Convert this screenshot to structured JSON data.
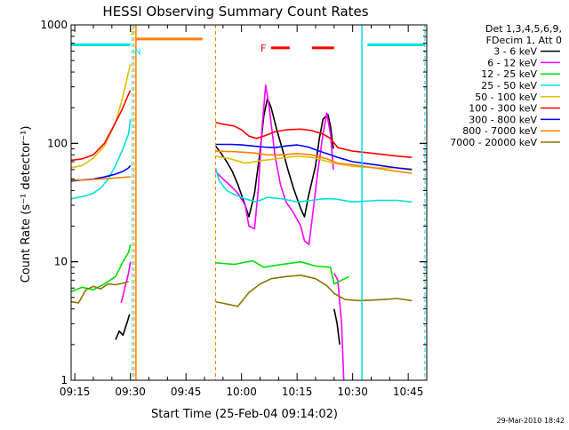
{
  "chart_data": {
    "type": "line",
    "title": "HESSI Observing Summary Count Rates",
    "xlabel": "Start Time (25-Feb-04 09:14:02)",
    "ylabel": "Count Rate (s⁻¹ detector⁻¹)",
    "x_unit": "minutes from 09:14:02",
    "xlim": [
      0,
      96
    ],
    "ylim": [
      1,
      1000
    ],
    "yscale": "log",
    "x_ticks": [
      {
        "x": 1,
        "label": "09:15"
      },
      {
        "x": 16,
        "label": "09:30"
      },
      {
        "x": 31,
        "label": "09:45"
      },
      {
        "x": 46,
        "label": "10:00"
      },
      {
        "x": 61,
        "label": "10:15"
      },
      {
        "x": 76,
        "label": "10:30"
      },
      {
        "x": 91,
        "label": "10:45"
      }
    ],
    "y_ticks": [
      {
        "y": 1,
        "label": "1"
      },
      {
        "y": 10,
        "label": "10"
      },
      {
        "y": 100,
        "label": "100"
      },
      {
        "y": 1000,
        "label": "1000"
      }
    ],
    "legend_header": [
      "Det 1,3,4,5,6,9,",
      "FDecim 1, Att 0"
    ],
    "legend_position": "right",
    "series": [
      {
        "name": "3 - 6 keV",
        "color": "#000000",
        "segments": [
          [
            [
              12,
              2.2
            ],
            [
              13,
              2.6
            ],
            [
              14,
              2.4
            ],
            [
              15,
              3.0
            ],
            [
              15.8,
              3.6
            ]
          ],
          [
            [
              39,
              95
            ],
            [
              40.5,
              82
            ],
            [
              42,
              70
            ],
            [
              43.5,
              58
            ],
            [
              45,
              45
            ],
            [
              47,
              30
            ],
            [
              48,
              24
            ],
            [
              49.5,
              38
            ],
            [
              51,
              85
            ],
            [
              52,
              170
            ],
            [
              53,
              240
            ],
            [
              54,
              200
            ],
            [
              55.5,
              130
            ],
            [
              57,
              90
            ],
            [
              58.5,
              60
            ],
            [
              60,
              42
            ],
            [
              62,
              28
            ],
            [
              63,
              24
            ],
            [
              64,
              35
            ],
            [
              66,
              65
            ],
            [
              67,
              110
            ],
            [
              68,
              160
            ],
            [
              69.3,
              175
            ],
            [
              70,
              140
            ],
            [
              70.8,
              90
            ]
          ],
          [
            [
              71,
              4
            ],
            [
              71.8,
              3
            ],
            [
              72.5,
              2
            ]
          ]
        ]
      },
      {
        "name": "6 - 12 keV",
        "color": "#ff00ff",
        "segments": [
          [
            [
              13.5,
              4.5
            ],
            [
              14.5,
              6
            ],
            [
              15.5,
              8
            ],
            [
              16,
              10
            ]
          ],
          [
            [
              39,
              58
            ],
            [
              41,
              50
            ],
            [
              43,
              44
            ],
            [
              45,
              38
            ],
            [
              47,
              30
            ],
            [
              48,
              20
            ],
            [
              49.5,
              19
            ],
            [
              50.5,
              40
            ],
            [
              51.5,
              130
            ],
            [
              52.5,
              310
            ],
            [
              53.5,
              200
            ],
            [
              55,
              80
            ],
            [
              56.5,
              45
            ],
            [
              58,
              32
            ],
            [
              60,
              26
            ],
            [
              62,
              20
            ],
            [
              63,
              15
            ],
            [
              64.2,
              14
            ],
            [
              65,
              22
            ],
            [
              66.5,
              55
            ],
            [
              68,
              120
            ],
            [
              69,
              180
            ],
            [
              70,
              120
            ],
            [
              70.8,
              60
            ]
          ],
          [
            [
              71,
              8
            ],
            [
              72,
              7
            ],
            [
              73,
              3
            ],
            [
              73.6,
              1
            ]
          ]
        ]
      },
      {
        "name": "12 - 25 keV",
        "color": "#00e000",
        "segments": [
          [
            [
              0,
              5.6
            ],
            [
              3,
              6.1
            ],
            [
              6,
              5.8
            ],
            [
              9,
              6.5
            ],
            [
              12,
              7.5
            ],
            [
              14,
              10
            ],
            [
              15.5,
              12
            ],
            [
              16,
              14
            ]
          ],
          [
            [
              39,
              9.8
            ],
            [
              44,
              9.5
            ],
            [
              49,
              10.2
            ],
            [
              52,
              9.0
            ],
            [
              57,
              9.5
            ],
            [
              62,
              10.0
            ],
            [
              66,
              9.2
            ],
            [
              70,
              9.0
            ],
            [
              71,
              6.5
            ],
            [
              75,
              7.5
            ]
          ]
        ]
      },
      {
        "name": "25 - 50 keV",
        "color": "#00e0e0",
        "segments": [
          [
            [
              0,
              34
            ],
            [
              2,
              35
            ],
            [
              4,
              36
            ],
            [
              6,
              38
            ],
            [
              8,
              42
            ],
            [
              10,
              50
            ],
            [
              12,
              65
            ],
            [
              14,
              90
            ],
            [
              15.5,
              120
            ],
            [
              16,
              160
            ]
          ],
          [
            [
              39,
              62
            ],
            [
              40,
              48
            ],
            [
              42,
              40
            ],
            [
              44,
              37
            ],
            [
              47,
              34
            ],
            [
              50,
              32
            ],
            [
              53,
              35
            ],
            [
              57,
              34
            ],
            [
              61,
              32
            ],
            [
              65,
              33
            ],
            [
              68,
              34
            ],
            [
              71,
              34
            ],
            [
              76,
              32
            ],
            [
              83,
              33
            ],
            [
              88,
              33
            ],
            [
              92,
              32
            ]
          ]
        ]
      },
      {
        "name": "50 - 100 keV",
        "color": "#e0c000",
        "segments": [
          [
            [
              0,
              62
            ],
            [
              3,
              65
            ],
            [
              6,
              75
            ],
            [
              9,
              95
            ],
            [
              12,
              150
            ],
            [
              14,
              250
            ],
            [
              15.5,
              400
            ],
            [
              16,
              470
            ]
          ],
          [
            [
              39,
              78
            ],
            [
              43,
              74
            ],
            [
              47,
              68
            ],
            [
              52,
              72
            ],
            [
              57,
              75
            ],
            [
              61,
              78
            ],
            [
              65,
              76
            ],
            [
              68,
              72
            ],
            [
              71,
              68
            ],
            [
              76,
              64
            ],
            [
              82,
              62
            ],
            [
              88,
              62
            ],
            [
              92,
              61
            ]
          ]
        ]
      },
      {
        "name": "100 - 300 keV",
        "color": "#ff0000",
        "segments": [
          [
            [
              0,
              72
            ],
            [
              3,
              74
            ],
            [
              6,
              80
            ],
            [
              9,
              100
            ],
            [
              12,
              150
            ],
            [
              14,
              200
            ],
            [
              15.5,
              260
            ],
            [
              16,
              280
            ]
          ],
          [
            [
              39,
              150
            ],
            [
              41,
              145
            ],
            [
              44,
              140
            ],
            [
              46,
              130
            ],
            [
              48,
              115
            ],
            [
              50,
              110
            ],
            [
              52,
              115
            ],
            [
              55,
              125
            ],
            [
              58,
              130
            ],
            [
              62,
              132
            ],
            [
              65,
              128
            ],
            [
              68,
              120
            ],
            [
              70,
              110
            ],
            [
              72,
              92
            ],
            [
              76,
              86
            ],
            [
              82,
              82
            ],
            [
              88,
              78
            ],
            [
              92,
              76
            ]
          ]
        ]
      },
      {
        "name": "300 - 800 keV",
        "color": "#0000ff",
        "segments": [
          [
            [
              0,
              48
            ],
            [
              3,
              49
            ],
            [
              6,
              50
            ],
            [
              9,
              52
            ],
            [
              12,
              55
            ],
            [
              14,
              58
            ],
            [
              15.5,
              62
            ],
            [
              16,
              65
            ]
          ],
          [
            [
              39,
              98
            ],
            [
              43,
              98
            ],
            [
              46,
              97
            ],
            [
              49,
              95
            ],
            [
              52,
              93
            ],
            [
              55,
              92
            ],
            [
              58,
              95
            ],
            [
              61,
              97
            ],
            [
              64,
              93
            ],
            [
              67,
              86
            ],
            [
              70,
              80
            ],
            [
              72,
              76
            ],
            [
              76,
              70
            ],
            [
              82,
              66
            ],
            [
              88,
              62
            ],
            [
              92,
              60
            ]
          ]
        ]
      },
      {
        "name": "800 - 7000 keV",
        "color": "#ff8000",
        "segments": [
          [
            [
              0,
              49
            ],
            [
              4,
              49
            ],
            [
              8,
              50
            ],
            [
              12,
              51
            ],
            [
              15.5,
              52
            ],
            [
              16,
              52
            ]
          ],
          [
            [
              39,
              86
            ],
            [
              44,
              85
            ],
            [
              49,
              83
            ],
            [
              53,
              80
            ],
            [
              57,
              80
            ],
            [
              61,
              82
            ],
            [
              65,
              80
            ],
            [
              69,
              74
            ],
            [
              72,
              68
            ],
            [
              76,
              66
            ],
            [
              82,
              62
            ],
            [
              88,
              58
            ],
            [
              92,
              56
            ]
          ]
        ]
      },
      {
        "name": "7000 - 20000 keV",
        "color": "#8b7500",
        "segments": [
          [
            [
              0,
              4.6
            ],
            [
              2,
              4.5
            ],
            [
              4,
              5.8
            ],
            [
              6,
              6.2
            ],
            [
              8,
              5.9
            ],
            [
              10,
              6.5
            ],
            [
              12,
              6.4
            ],
            [
              14,
              6.6
            ],
            [
              15.5,
              6.8
            ]
          ],
          [
            [
              39,
              4.6
            ],
            [
              42,
              4.4
            ],
            [
              45,
              4.2
            ],
            [
              48,
              5.5
            ],
            [
              51,
              6.5
            ],
            [
              54,
              7.2
            ],
            [
              58,
              7.5
            ],
            [
              62,
              7.7
            ],
            [
              66,
              7.2
            ],
            [
              69,
              6.3
            ],
            [
              71,
              5.4
            ],
            [
              74,
              4.8
            ],
            [
              78,
              4.7
            ],
            [
              84,
              4.8
            ],
            [
              88,
              4.9
            ],
            [
              92,
              4.7
            ]
          ]
        ]
      }
    ],
    "orange_bar": {
      "color": "#ff8000",
      "x": [
        17.5,
        35.5
      ],
      "y": 760
    },
    "flare_segments": {
      "color": "#ff0000",
      "label": "F",
      "ranges": [
        [
          54,
          59
        ],
        [
          65,
          71
        ]
      ],
      "y": 640
    },
    "cyan_bars": {
      "color": "#00e0e0",
      "ranges": [
        [
          0,
          16
        ],
        [
          80,
          95.5
        ]
      ],
      "y": 680
    },
    "solid_vlines": [
      {
        "x": 17.5,
        "color": "#ff8000"
      },
      {
        "x": 78.5,
        "color": "#00e0e0"
      }
    ],
    "dashed_vlines": [
      {
        "x": 16.5,
        "color": "#00e0e0"
      },
      {
        "x": 17,
        "color": "#ff8000"
      },
      {
        "x": 39,
        "color": "#ff8000"
      },
      {
        "x": 95.5,
        "color": "#00e0e0"
      }
    ],
    "annotations": [
      {
        "x": 16.5,
        "y": 820,
        "text": "S",
        "color": "#e0c000"
      },
      {
        "x": 18,
        "y": 560,
        "text": "N",
        "color": "#00e0e0"
      }
    ],
    "footer": "29-Mar-2010 18:42"
  }
}
